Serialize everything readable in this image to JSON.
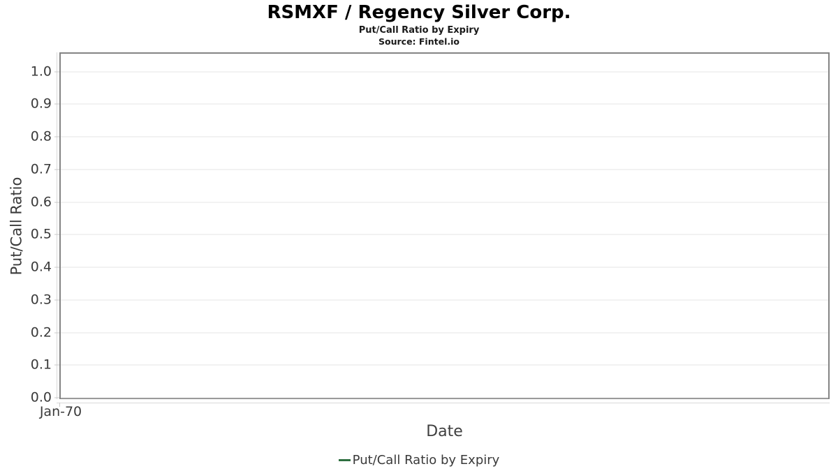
{
  "header": {
    "title": "RSMXF / Regency Silver Corp.",
    "subtitle": "Put/Call Ratio by Expiry",
    "source": "Source: Fintel.io"
  },
  "axes": {
    "y_label": "Put/Call Ratio",
    "x_label": "Date",
    "x_tick": "Jan-70"
  },
  "legend": {
    "label": "Put/Call Ratio by Expiry",
    "marker_color": "#2e6f40"
  },
  "colors": {
    "plot_border": "#848484",
    "gridline": "#e6e6e6",
    "axis_line": "#d9d9d9",
    "tick_text": "#3a3a3a",
    "series_green": "#2e6f40"
  },
  "chart_data": {
    "type": "line",
    "title": "RSMXF / Regency Silver Corp.",
    "subtitle": "Put/Call Ratio by Expiry",
    "source": "Source: Fintel.io",
    "xlabel": "Date",
    "ylabel": "Put/Call Ratio",
    "x_tick_labels": [
      "Jan-70"
    ],
    "y_ticks": [
      0.0,
      0.1,
      0.2,
      0.3,
      0.4,
      0.5,
      0.6,
      0.7,
      0.8,
      0.9,
      1.0
    ],
    "ylim": [
      0,
      1.055
    ],
    "grid": "horizontal",
    "legend_position": "bottom",
    "series": [
      {
        "name": "Put/Call Ratio by Expiry",
        "color": "#2e6f40",
        "x": [],
        "values": []
      }
    ]
  }
}
